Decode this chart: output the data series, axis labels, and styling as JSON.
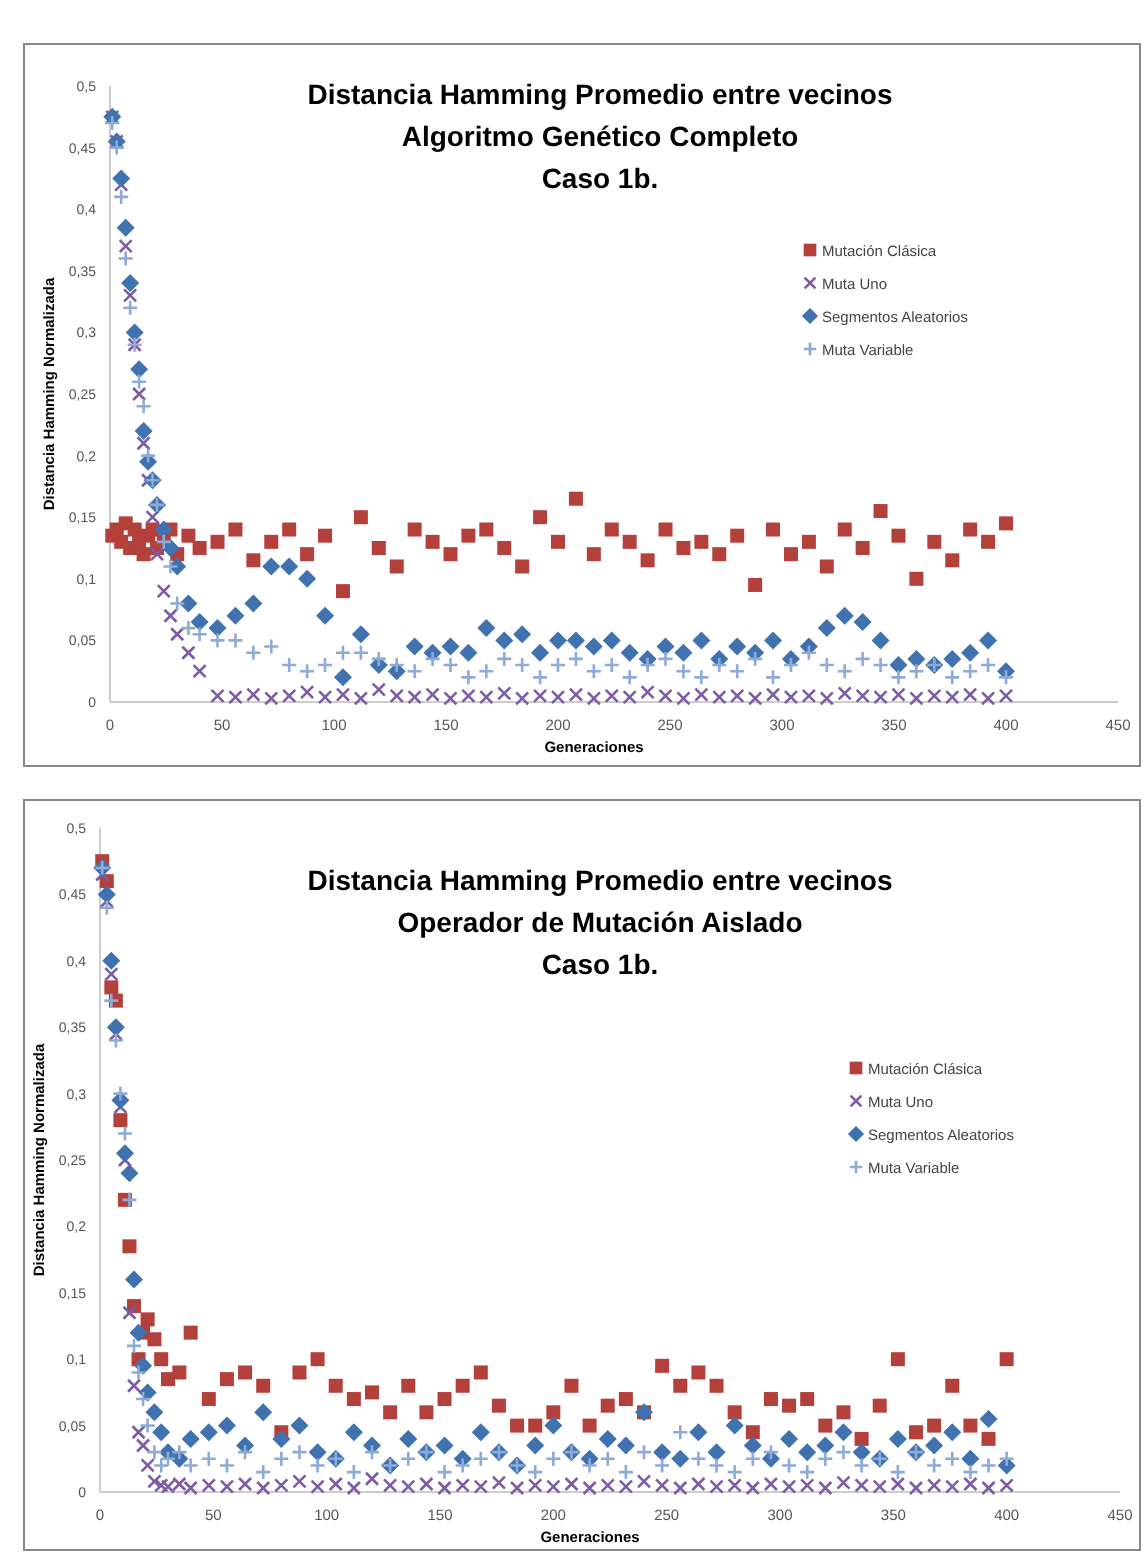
{
  "chart_data": [
    {
      "type": "scatter",
      "title": "Distancia Hamming Promedio entre vecinos\nAlgoritmo Genético Completo\nCaso 1b.",
      "xlabel": "Generaciones",
      "ylabel": "Distancia Hamming Normalizada",
      "xlim": [
        0,
        450
      ],
      "ylim": [
        0,
        0.5
      ],
      "xticks": [
        0,
        50,
        100,
        150,
        200,
        250,
        300,
        350,
        400,
        450
      ],
      "yticks": [
        {
          "value": 0,
          "label": "0"
        },
        {
          "value": 0.05,
          "label": "0,05"
        },
        {
          "value": 0.1,
          "label": "0,1"
        },
        {
          "value": 0.15,
          "label": "0,15"
        },
        {
          "value": 0.2,
          "label": "0,2"
        },
        {
          "value": 0.25,
          "label": "0,25"
        },
        {
          "value": 0.3,
          "label": "0,3"
        },
        {
          "value": 0.35,
          "label": "0,35"
        },
        {
          "value": 0.4,
          "label": "0,4"
        },
        {
          "value": 0.45,
          "label": "0,45"
        },
        {
          "value": 0.5,
          "label": "0,5"
        }
      ],
      "grid": false,
      "legend": "right",
      "x": [
        1,
        3,
        5,
        7,
        9,
        11,
        13,
        15,
        17,
        19,
        21,
        24,
        27,
        30,
        35,
        40,
        48,
        56,
        64,
        72,
        80,
        88,
        96,
        104,
        112,
        120,
        128,
        136,
        144,
        152,
        160,
        168,
        176,
        184,
        192,
        200,
        208,
        216,
        224,
        232,
        240,
        248,
        256,
        264,
        272,
        280,
        288,
        296,
        304,
        312,
        320,
        328,
        336,
        344,
        352,
        360,
        368,
        376,
        384,
        392,
        400
      ],
      "series": [
        {
          "name": "Mutación Clásica",
          "color": "#b4403c",
          "marker": "square",
          "values": [
            0.135,
            0.14,
            0.13,
            0.145,
            0.125,
            0.14,
            0.13,
            0.12,
            0.135,
            0.14,
            0.125,
            0.13,
            0.14,
            0.12,
            0.135,
            0.125,
            0.13,
            0.14,
            0.115,
            0.13,
            0.14,
            0.12,
            0.135,
            0.09,
            0.15,
            0.125,
            0.11,
            0.14,
            0.13,
            0.12,
            0.135,
            0.14,
            0.125,
            0.11,
            0.15,
            0.13,
            0.165,
            0.12,
            0.14,
            0.13,
            0.115,
            0.14,
            0.125,
            0.13,
            0.12,
            0.135,
            0.095,
            0.14,
            0.12,
            0.13,
            0.11,
            0.14,
            0.125,
            0.155,
            0.135,
            0.1,
            0.13,
            0.115,
            0.14,
            0.13,
            0.145
          ]
        },
        {
          "name": "Muta Uno",
          "color": "#7d5ba6",
          "marker": "x",
          "values": [
            0.475,
            0.455,
            0.42,
            0.37,
            0.33,
            0.29,
            0.25,
            0.21,
            0.18,
            0.15,
            0.12,
            0.09,
            0.07,
            0.055,
            0.04,
            0.025,
            0.005,
            0.004,
            0.006,
            0.003,
            0.005,
            0.008,
            0.004,
            0.006,
            0.003,
            0.01,
            0.005,
            0.004,
            0.006,
            0.003,
            0.005,
            0.004,
            0.007,
            0.003,
            0.005,
            0.004,
            0.006,
            0.003,
            0.005,
            0.004,
            0.008,
            0.005,
            0.003,
            0.006,
            0.004,
            0.005,
            0.003,
            0.006,
            0.004,
            0.005,
            0.003,
            0.007,
            0.005,
            0.004,
            0.006,
            0.003,
            0.005,
            0.004,
            0.006,
            0.003,
            0.005
          ]
        },
        {
          "name": "Segmentos Aleatorios",
          "color": "#3f72af",
          "marker": "diamond",
          "values": [
            0.475,
            0.455,
            0.425,
            0.385,
            0.34,
            0.3,
            0.27,
            0.22,
            0.195,
            0.18,
            0.16,
            0.14,
            0.125,
            0.11,
            0.08,
            0.065,
            0.06,
            0.07,
            0.08,
            0.11,
            0.11,
            0.1,
            0.07,
            0.02,
            0.055,
            0.03,
            0.025,
            0.045,
            0.04,
            0.045,
            0.04,
            0.06,
            0.05,
            0.055,
            0.04,
            0.05,
            0.05,
            0.045,
            0.05,
            0.04,
            0.035,
            0.045,
            0.04,
            0.05,
            0.035,
            0.045,
            0.04,
            0.05,
            0.035,
            0.045,
            0.06,
            0.07,
            0.065,
            0.05,
            0.03,
            0.035,
            0.03,
            0.035,
            0.04,
            0.05,
            0.025
          ]
        },
        {
          "name": "Muta Variable",
          "color": "#8eaad9",
          "marker": "cross",
          "values": [
            0.47,
            0.45,
            0.41,
            0.36,
            0.32,
            0.29,
            0.26,
            0.24,
            0.2,
            0.18,
            0.16,
            0.13,
            0.11,
            0.08,
            0.06,
            0.055,
            0.05,
            0.05,
            0.04,
            0.045,
            0.03,
            0.025,
            0.03,
            0.04,
            0.04,
            0.035,
            0.03,
            0.025,
            0.035,
            0.03,
            0.02,
            0.025,
            0.035,
            0.03,
            0.02,
            0.03,
            0.035,
            0.025,
            0.03,
            0.02,
            0.03,
            0.035,
            0.025,
            0.02,
            0.03,
            0.025,
            0.035,
            0.02,
            0.03,
            0.04,
            0.03,
            0.025,
            0.035,
            0.03,
            0.02,
            0.025,
            0.03,
            0.02,
            0.025,
            0.03,
            0.02
          ]
        }
      ]
    },
    {
      "type": "scatter",
      "title": "Distancia Hamming Promedio entre vecinos\nOperador de Mutación Aislado\nCaso 1b.",
      "xlabel": "Generaciones",
      "ylabel": "Distancia Hamming Normalizada",
      "xlim": [
        0,
        450
      ],
      "ylim": [
        0,
        0.5
      ],
      "xticks": [
        0,
        50,
        100,
        150,
        200,
        250,
        300,
        350,
        400,
        450
      ],
      "yticks": [
        {
          "value": 0,
          "label": "0"
        },
        {
          "value": 0.05,
          "label": "0,05"
        },
        {
          "value": 0.1,
          "label": "0,1"
        },
        {
          "value": 0.15,
          "label": "0,15"
        },
        {
          "value": 0.2,
          "label": "0,2"
        },
        {
          "value": 0.25,
          "label": "0,25"
        },
        {
          "value": 0.3,
          "label": "0,3"
        },
        {
          "value": 0.35,
          "label": "0,35"
        },
        {
          "value": 0.4,
          "label": "0,4"
        },
        {
          "value": 0.45,
          "label": "0,45"
        },
        {
          "value": 0.5,
          "label": "0,5"
        }
      ],
      "grid": false,
      "legend": "right",
      "x": [
        1,
        3,
        5,
        7,
        9,
        11,
        13,
        15,
        17,
        19,
        21,
        24,
        27,
        30,
        35,
        40,
        48,
        56,
        64,
        72,
        80,
        88,
        96,
        104,
        112,
        120,
        128,
        136,
        144,
        152,
        160,
        168,
        176,
        184,
        192,
        200,
        208,
        216,
        224,
        232,
        240,
        248,
        256,
        264,
        272,
        280,
        288,
        296,
        304,
        312,
        320,
        328,
        336,
        344,
        352,
        360,
        368,
        376,
        384,
        392,
        400
      ],
      "series": [
        {
          "name": "Mutación Clásica",
          "color": "#b4403c",
          "marker": "square",
          "values": [
            0.475,
            0.46,
            0.38,
            0.37,
            0.28,
            0.22,
            0.185,
            0.14,
            0.1,
            0.12,
            0.13,
            0.115,
            0.1,
            0.085,
            0.09,
            0.12,
            0.07,
            0.085,
            0.09,
            0.08,
            0.045,
            0.09,
            0.1,
            0.08,
            0.07,
            0.075,
            0.06,
            0.08,
            0.06,
            0.07,
            0.08,
            0.09,
            0.065,
            0.05,
            0.05,
            0.06,
            0.08,
            0.05,
            0.065,
            0.07,
            0.06,
            0.095,
            0.08,
            0.09,
            0.08,
            0.06,
            0.045,
            0.07,
            0.065,
            0.07,
            0.05,
            0.06,
            0.04,
            0.065,
            0.1,
            0.045,
            0.05,
            0.08,
            0.05,
            0.04,
            0.1
          ]
        },
        {
          "name": "Muta Uno",
          "color": "#7d5ba6",
          "marker": "x",
          "values": [
            0.465,
            0.445,
            0.39,
            0.345,
            0.29,
            0.25,
            0.135,
            0.08,
            0.045,
            0.035,
            0.02,
            0.008,
            0.005,
            0.004,
            0.006,
            0.003,
            0.005,
            0.004,
            0.006,
            0.003,
            0.005,
            0.008,
            0.004,
            0.006,
            0.003,
            0.01,
            0.005,
            0.004,
            0.006,
            0.003,
            0.005,
            0.004,
            0.007,
            0.003,
            0.005,
            0.004,
            0.006,
            0.003,
            0.005,
            0.004,
            0.008,
            0.005,
            0.003,
            0.006,
            0.004,
            0.005,
            0.003,
            0.006,
            0.004,
            0.005,
            0.003,
            0.007,
            0.005,
            0.004,
            0.006,
            0.003,
            0.005,
            0.004,
            0.006,
            0.003,
            0.005
          ]
        },
        {
          "name": "Segmentos Aleatorios",
          "color": "#3f72af",
          "marker": "diamond",
          "values": [
            0.47,
            0.45,
            0.4,
            0.35,
            0.295,
            0.255,
            0.24,
            0.16,
            0.12,
            0.095,
            0.075,
            0.06,
            0.045,
            0.03,
            0.025,
            0.04,
            0.045,
            0.05,
            0.035,
            0.06,
            0.04,
            0.05,
            0.03,
            0.025,
            0.045,
            0.035,
            0.02,
            0.04,
            0.03,
            0.035,
            0.025,
            0.045,
            0.03,
            0.02,
            0.035,
            0.05,
            0.03,
            0.025,
            0.04,
            0.035,
            0.06,
            0.03,
            0.025,
            0.045,
            0.03,
            0.05,
            0.035,
            0.025,
            0.04,
            0.03,
            0.035,
            0.045,
            0.03,
            0.025,
            0.04,
            0.03,
            0.035,
            0.045,
            0.025,
            0.055,
            0.02
          ]
        },
        {
          "name": "Muta Variable",
          "color": "#8eaad9",
          "marker": "cross",
          "values": [
            0.47,
            0.44,
            0.37,
            0.34,
            0.3,
            0.27,
            0.22,
            0.11,
            0.09,
            0.07,
            0.05,
            0.03,
            0.02,
            0.025,
            0.03,
            0.02,
            0.025,
            0.02,
            0.03,
            0.015,
            0.025,
            0.03,
            0.02,
            0.025,
            0.015,
            0.03,
            0.02,
            0.025,
            0.03,
            0.015,
            0.02,
            0.025,
            0.03,
            0.02,
            0.015,
            0.025,
            0.03,
            0.02,
            0.025,
            0.015,
            0.03,
            0.02,
            0.045,
            0.025,
            0.02,
            0.015,
            0.025,
            0.03,
            0.02,
            0.015,
            0.025,
            0.03,
            0.02,
            0.025,
            0.015,
            0.03,
            0.02,
            0.025,
            0.015,
            0.02,
            0.025
          ]
        }
      ]
    }
  ]
}
